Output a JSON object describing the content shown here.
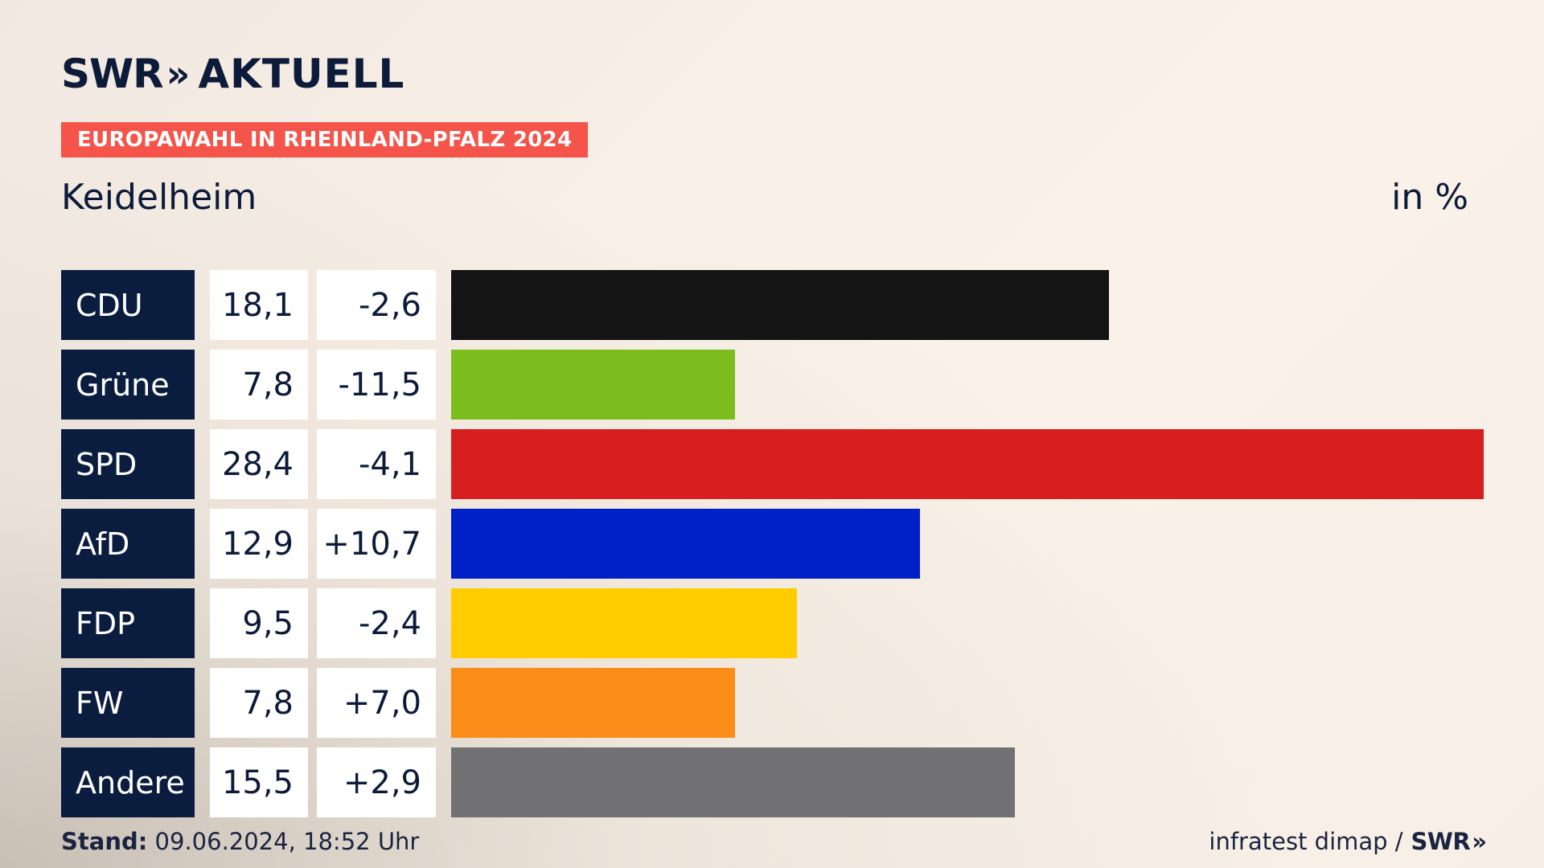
{
  "brand": {
    "swr": "SWR",
    "chevrons": "»",
    "aktuell": "AKTUELL"
  },
  "badge": {
    "text": "EUROPAWAHL IN RHEINLAND-PFALZ 2024",
    "color": "#f4544a"
  },
  "place": "Keidelheim",
  "unit": "in %",
  "footer": {
    "stand_label": "Stand:",
    "stand_value": " 09.06.2024, 18:52 Uhr",
    "source": "infratest dimap /",
    "source_brand": "SWR",
    "source_chevrons": "»"
  },
  "chart_data": {
    "type": "bar",
    "orientation": "horizontal",
    "title": "Keidelheim",
    "ylabel": "in %",
    "categories": [
      "CDU",
      "Grüne",
      "SPD",
      "AfD",
      "FDP",
      "FW",
      "Andere"
    ],
    "values": [
      18.1,
      7.8,
      28.4,
      12.9,
      9.5,
      7.8,
      15.5
    ],
    "value_labels": [
      "18,1",
      "7,8",
      "28,4",
      "12,9",
      "9,5",
      "7,8",
      "15,5"
    ],
    "diffs": [
      -2.6,
      -11.5,
      -4.1,
      10.7,
      -2.4,
      7.0,
      2.9
    ],
    "diff_labels": [
      "-2,6",
      "-11,5",
      "-4,1",
      "+10,7",
      "-2,4",
      "+7,0",
      "+2,9"
    ],
    "colors": [
      "#141414",
      "#7bbd1c",
      "#d71f1f",
      "#0020c8",
      "#ffcc00",
      "#fa8c18",
      "#717174"
    ],
    "xlim": [
      0,
      28.4
    ],
    "grid": false,
    "legend": "none"
  }
}
